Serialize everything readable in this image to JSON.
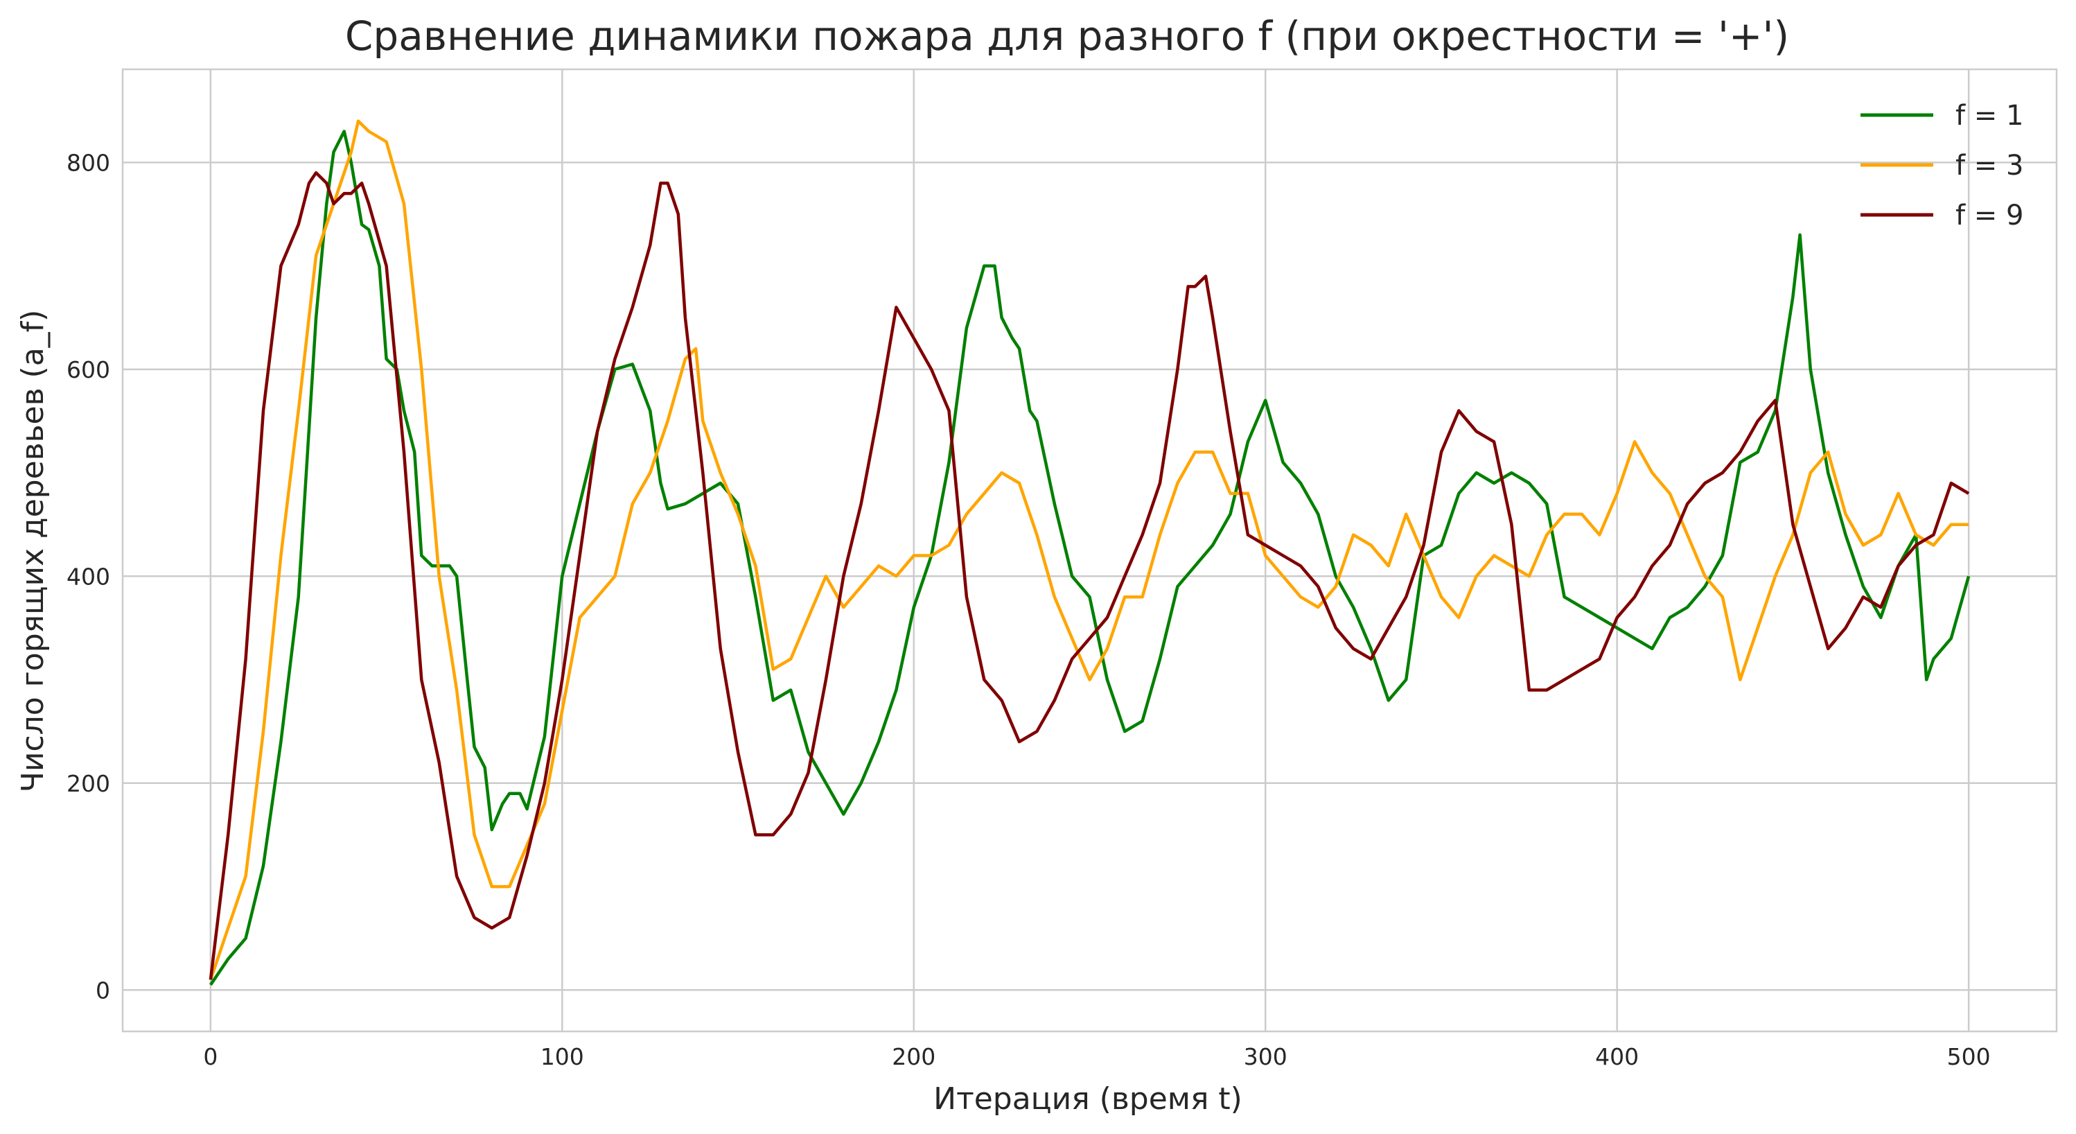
{
  "chart_data": {
    "type": "line",
    "title": "Сравнение динамики пожара для разного f (при окрестности = '+')",
    "xlabel": "Итерация (время t)",
    "ylabel": "Число горящих деревьев (a_f)",
    "xlim": [
      -25,
      525
    ],
    "ylim": [
      -40,
      890
    ],
    "xticks": [
      0,
      100,
      200,
      300,
      400,
      500
    ],
    "yticks": [
      0,
      200,
      400,
      600,
      800
    ],
    "grid": true,
    "legend": {
      "placement": "top-right",
      "entries": [
        "f = 1",
        "f = 3",
        "f = 9"
      ]
    },
    "series": [
      {
        "name": "f = 1",
        "color": "#008000",
        "x": [
          0,
          5,
          10,
          15,
          20,
          25,
          30,
          33,
          35,
          38,
          40,
          43,
          45,
          48,
          50,
          53,
          55,
          58,
          60,
          63,
          65,
          68,
          70,
          73,
          75,
          78,
          80,
          83,
          85,
          88,
          90,
          95,
          100,
          105,
          110,
          115,
          120,
          125,
          128,
          130,
          135,
          140,
          145,
          150,
          155,
          160,
          165,
          170,
          175,
          180,
          185,
          190,
          195,
          200,
          205,
          210,
          215,
          220,
          223,
          225,
          228,
          230,
          233,
          235,
          240,
          245,
          250,
          255,
          260,
          265,
          270,
          275,
          280,
          285,
          290,
          295,
          300,
          305,
          310,
          315,
          320,
          325,
          330,
          335,
          340,
          345,
          350,
          355,
          360,
          365,
          370,
          375,
          380,
          385,
          390,
          395,
          400,
          405,
          410,
          415,
          420,
          425,
          430,
          435,
          440,
          445,
          450,
          452,
          455,
          460,
          465,
          470,
          475,
          480,
          485,
          488,
          490,
          495,
          500
        ],
        "y": [
          5,
          30,
          50,
          120,
          240,
          380,
          650,
          760,
          810,
          830,
          800,
          740,
          735,
          700,
          610,
          600,
          560,
          520,
          420,
          410,
          410,
          410,
          400,
          300,
          235,
          215,
          155,
          180,
          190,
          190,
          175,
          245,
          400,
          470,
          540,
          600,
          605,
          560,
          490,
          465,
          470,
          480,
          490,
          470,
          380,
          280,
          290,
          230,
          200,
          170,
          200,
          240,
          290,
          370,
          420,
          510,
          640,
          700,
          700,
          650,
          630,
          620,
          560,
          550,
          470,
          400,
          380,
          300,
          250,
          260,
          320,
          390,
          410,
          430,
          460,
          530,
          570,
          510,
          490,
          460,
          400,
          370,
          330,
          280,
          300,
          420,
          430,
          480,
          500,
          490,
          500,
          490,
          470,
          380,
          370,
          360,
          350,
          340,
          330,
          360,
          370,
          390,
          420,
          510,
          520,
          560,
          670,
          730,
          600,
          500,
          440,
          390,
          360,
          410,
          440,
          300,
          320,
          340,
          400
        ]
      },
      {
        "name": "f = 3",
        "color": "#ffa500",
        "x": [
          0,
          5,
          10,
          15,
          20,
          25,
          30,
          35,
          40,
          42,
          45,
          50,
          55,
          60,
          65,
          70,
          75,
          80,
          85,
          90,
          95,
          100,
          105,
          110,
          115,
          120,
          125,
          130,
          135,
          138,
          140,
          145,
          150,
          155,
          160,
          165,
          170,
          175,
          180,
          185,
          190,
          195,
          200,
          205,
          210,
          215,
          220,
          225,
          230,
          235,
          240,
          245,
          250,
          255,
          260,
          265,
          270,
          275,
          280,
          285,
          290,
          295,
          300,
          305,
          310,
          315,
          320,
          325,
          330,
          335,
          340,
          345,
          350,
          355,
          360,
          365,
          370,
          375,
          380,
          385,
          390,
          395,
          400,
          405,
          410,
          415,
          420,
          425,
          430,
          435,
          440,
          445,
          450,
          455,
          460,
          465,
          470,
          475,
          480,
          485,
          490,
          495,
          500
        ],
        "y": [
          10,
          60,
          110,
          250,
          420,
          560,
          710,
          760,
          810,
          840,
          830,
          820,
          760,
          600,
          400,
          290,
          150,
          100,
          100,
          140,
          180,
          270,
          360,
          380,
          400,
          470,
          500,
          550,
          610,
          620,
          550,
          500,
          460,
          410,
          310,
          320,
          360,
          400,
          370,
          390,
          410,
          400,
          420,
          420,
          430,
          460,
          480,
          500,
          490,
          440,
          380,
          340,
          300,
          330,
          380,
          380,
          440,
          490,
          520,
          520,
          480,
          480,
          420,
          400,
          380,
          370,
          390,
          440,
          430,
          410,
          460,
          420,
          380,
          360,
          400,
          420,
          410,
          400,
          440,
          460,
          460,
          440,
          480,
          530,
          500,
          480,
          440,
          400,
          380,
          300,
          350,
          400,
          440,
          500,
          520,
          460,
          430,
          440,
          480,
          440,
          430,
          450,
          450
        ]
      },
      {
        "name": "f = 9",
        "color": "#800000",
        "x": [
          0,
          5,
          10,
          15,
          20,
          25,
          28,
          30,
          33,
          35,
          38,
          40,
          43,
          45,
          50,
          55,
          60,
          65,
          70,
          75,
          80,
          85,
          90,
          95,
          100,
          105,
          110,
          115,
          120,
          125,
          128,
          130,
          133,
          135,
          140,
          145,
          150,
          155,
          160,
          165,
          170,
          175,
          180,
          185,
          190,
          195,
          200,
          205,
          210,
          215,
          220,
          225,
          230,
          235,
          240,
          245,
          250,
          255,
          260,
          265,
          270,
          275,
          278,
          280,
          283,
          285,
          290,
          295,
          300,
          305,
          310,
          315,
          320,
          325,
          330,
          335,
          340,
          345,
          350,
          355,
          360,
          365,
          370,
          375,
          380,
          385,
          390,
          395,
          400,
          405,
          410,
          415,
          420,
          425,
          430,
          435,
          440,
          445,
          450,
          455,
          460,
          465,
          470,
          475,
          480,
          485,
          490,
          495,
          500
        ],
        "y": [
          10,
          150,
          320,
          560,
          700,
          740,
          780,
          790,
          780,
          760,
          770,
          770,
          780,
          760,
          700,
          520,
          300,
          220,
          110,
          70,
          60,
          70,
          130,
          200,
          300,
          420,
          540,
          610,
          660,
          720,
          780,
          780,
          750,
          650,
          500,
          330,
          230,
          150,
          150,
          170,
          210,
          300,
          400,
          470,
          560,
          660,
          630,
          600,
          560,
          380,
          300,
          280,
          240,
          250,
          280,
          320,
          340,
          360,
          400,
          440,
          490,
          600,
          680,
          680,
          690,
          650,
          540,
          440,
          430,
          420,
          410,
          390,
          350,
          330,
          320,
          350,
          380,
          430,
          520,
          560,
          540,
          530,
          450,
          290,
          290,
          300,
          310,
          320,
          360,
          380,
          410,
          430,
          470,
          490,
          500,
          520,
          550,
          570,
          450,
          390,
          330,
          350,
          380,
          370,
          410,
          430,
          440,
          490,
          480
        ]
      }
    ]
  }
}
